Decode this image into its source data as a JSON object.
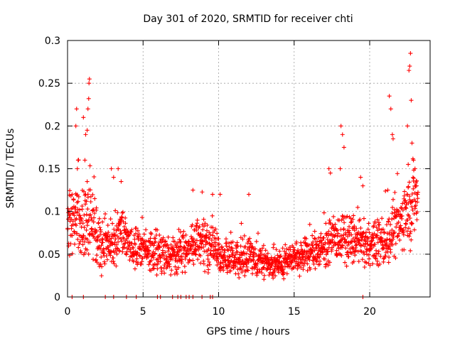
{
  "chart_data": {
    "type": "scatter",
    "title": "Day 301 of 2020, SRMTID for receiver chti",
    "xlabel": "GPS time / hours",
    "ylabel": "SRMTID / TECUs",
    "xlim": [
      0,
      24
    ],
    "ylim": [
      0,
      0.3
    ],
    "x_ticks": [
      0,
      5,
      10,
      15,
      20
    ],
    "x_tick_labels": [
      "0",
      "5",
      "10",
      "15",
      "20"
    ],
    "y_ticks": [
      0,
      0.05,
      0.1,
      0.15,
      0.2,
      0.25,
      0.3
    ],
    "y_tick_labels": [
      "0",
      "0.05",
      "0.1",
      "0.15",
      "0.2",
      "0.25",
      "0.3"
    ],
    "grid": true,
    "marker": "+",
    "marker_color": "#ff0000",
    "grid_color": "#a0a0a0",
    "series": [
      {
        "name": "SRMTID",
        "x_range": [
          0,
          23.2
        ],
        "envelope": [
          [
            0.0,
            0.085,
            0.035
          ],
          [
            0.5,
            0.09,
            0.03
          ],
          [
            1.0,
            0.085,
            0.035
          ],
          [
            1.5,
            0.095,
            0.04
          ],
          [
            2.0,
            0.065,
            0.03
          ],
          [
            2.5,
            0.06,
            0.025
          ],
          [
            3.0,
            0.065,
            0.025
          ],
          [
            3.5,
            0.075,
            0.03
          ],
          [
            4.0,
            0.06,
            0.025
          ],
          [
            5.0,
            0.055,
            0.02
          ],
          [
            6.0,
            0.05,
            0.02
          ],
          [
            7.0,
            0.05,
            0.02
          ],
          [
            8.0,
            0.055,
            0.02
          ],
          [
            9.0,
            0.065,
            0.025
          ],
          [
            10.0,
            0.05,
            0.02
          ],
          [
            11.0,
            0.045,
            0.02
          ],
          [
            12.0,
            0.045,
            0.02
          ],
          [
            13.0,
            0.04,
            0.015
          ],
          [
            14.0,
            0.04,
            0.015
          ],
          [
            15.0,
            0.045,
            0.015
          ],
          [
            16.0,
            0.05,
            0.02
          ],
          [
            17.0,
            0.06,
            0.02
          ],
          [
            18.0,
            0.07,
            0.025
          ],
          [
            19.0,
            0.065,
            0.025
          ],
          [
            20.0,
            0.06,
            0.02
          ],
          [
            21.0,
            0.065,
            0.025
          ],
          [
            22.0,
            0.085,
            0.03
          ],
          [
            23.0,
            0.115,
            0.04
          ]
        ],
        "highlights": [
          [
            0.3,
            0.12
          ],
          [
            0.55,
            0.2
          ],
          [
            0.6,
            0.22
          ],
          [
            0.65,
            0.15
          ],
          [
            0.7,
            0.16
          ],
          [
            1.05,
            0.21
          ],
          [
            1.15,
            0.16
          ],
          [
            1.2,
            0.19
          ],
          [
            1.3,
            0.195
          ],
          [
            1.35,
            0.22
          ],
          [
            1.4,
            0.232
          ],
          [
            1.42,
            0.25
          ],
          [
            1.45,
            0.255
          ],
          [
            1.3,
            0.135
          ],
          [
            2.9,
            0.15
          ],
          [
            3.05,
            0.14
          ],
          [
            3.35,
            0.15
          ],
          [
            3.55,
            0.135
          ],
          [
            8.3,
            0.125
          ],
          [
            9.6,
            0.12
          ],
          [
            10.1,
            0.12
          ],
          [
            12.0,
            0.12
          ],
          [
            17.3,
            0.15
          ],
          [
            17.4,
            0.145
          ],
          [
            18.05,
            0.15
          ],
          [
            18.1,
            0.2
          ],
          [
            18.2,
            0.19
          ],
          [
            18.3,
            0.175
          ],
          [
            19.4,
            0.14
          ],
          [
            19.55,
            0.13
          ],
          [
            21.2,
            0.125
          ],
          [
            21.3,
            0.235
          ],
          [
            21.4,
            0.22
          ],
          [
            21.5,
            0.19
          ],
          [
            21.55,
            0.185
          ],
          [
            22.5,
            0.2
          ],
          [
            22.6,
            0.265
          ],
          [
            22.65,
            0.27
          ],
          [
            22.7,
            0.285
          ],
          [
            22.75,
            0.23
          ],
          [
            22.8,
            0.18
          ],
          [
            22.9,
            0.16
          ],
          [
            23.0,
            0.15
          ],
          [
            23.1,
            0.13
          ],
          [
            22.55,
            0.155
          ]
        ],
        "zeros": [
          0.3,
          1.05,
          2.5,
          3.05,
          3.9,
          4.55,
          5.95,
          6.15,
          6.95,
          7.3,
          7.5,
          7.85,
          8.05,
          8.3,
          8.9,
          9.45,
          9.6,
          19.55
        ]
      }
    ]
  }
}
